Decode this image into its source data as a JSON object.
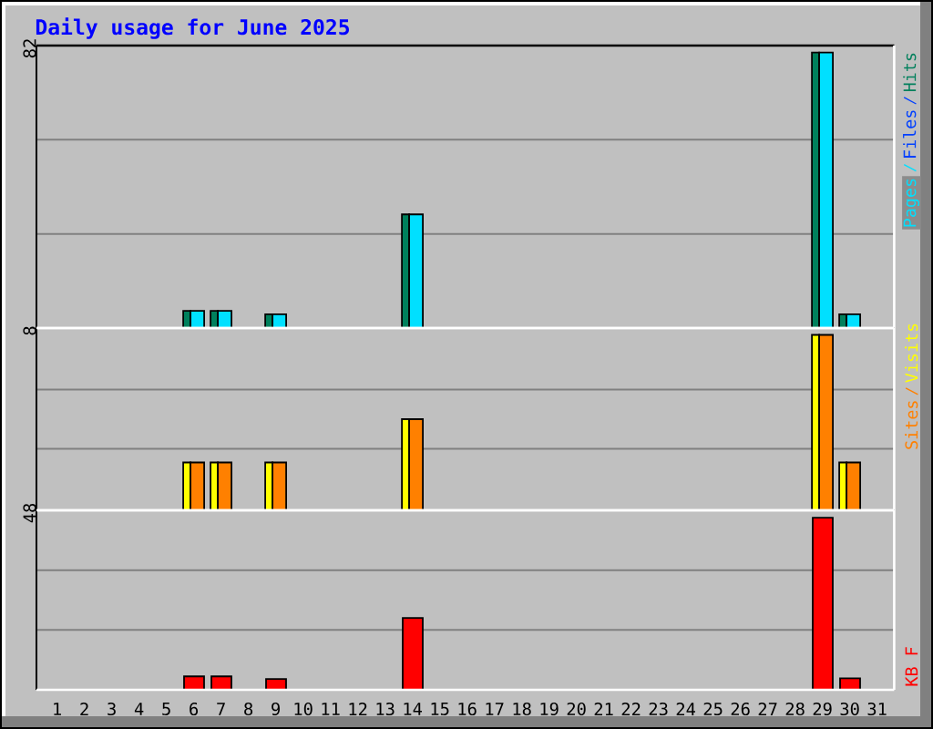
{
  "chart_data": [
    {
      "type": "bar",
      "title": "Daily usage for June 2025",
      "categories": [
        "1",
        "2",
        "3",
        "4",
        "5",
        "6",
        "7",
        "8",
        "9",
        "10",
        "11",
        "12",
        "13",
        "14",
        "15",
        "16",
        "17",
        "18",
        "19",
        "20",
        "21",
        "22",
        "23",
        "24",
        "25",
        "26",
        "27",
        "28",
        "29",
        "30",
        "31"
      ],
      "ylim": [
        0,
        82
      ],
      "yticks": [
        {
          "value": 27.3,
          "label": null
        },
        {
          "value": 54.7,
          "label": null
        },
        82
      ],
      "grid": "y",
      "tick_labels": "y",
      "series": [
        {
          "name": "Hits",
          "color": "#00805c",
          "values": [
            0,
            0,
            0,
            0,
            0,
            5,
            5,
            0,
            4,
            0,
            0,
            0,
            0,
            33,
            0,
            0,
            0,
            0,
            0,
            0,
            0,
            0,
            0,
            0,
            0,
            0,
            0,
            0,
            80,
            4,
            0
          ]
        },
        {
          "name": "Files",
          "color": "#0040ff",
          "values": [
            null,
            null,
            null,
            null,
            null,
            null,
            null,
            null,
            null,
            null,
            null,
            null,
            null,
            null,
            null,
            null,
            null,
            null,
            null,
            null,
            null,
            null,
            null,
            null,
            null,
            null,
            null,
            null,
            null,
            null,
            null
          ]
        },
        {
          "name": "Pages",
          "color": "#00e0ff",
          "values": [
            0,
            0,
            0,
            0,
            0,
            5,
            5,
            0,
            4,
            0,
            0,
            0,
            0,
            33,
            0,
            0,
            0,
            0,
            0,
            0,
            0,
            0,
            0,
            0,
            0,
            0,
            0,
            0,
            80,
            4,
            0
          ]
        }
      ]
    },
    {
      "type": "bar",
      "categories": [
        "1",
        "2",
        "3",
        "4",
        "5",
        "6",
        "7",
        "8",
        "9",
        "10",
        "11",
        "12",
        "13",
        "14",
        "15",
        "16",
        "17",
        "18",
        "19",
        "20",
        "21",
        "22",
        "23",
        "24",
        "25",
        "26",
        "27",
        "28",
        "29",
        "30",
        "31"
      ],
      "ylim": [
        0,
        8
      ],
      "yticks": [
        {
          "value": 2.7,
          "label": null
        },
        {
          "value": 5.3,
          "label": null
        },
        8
      ],
      "grid": "y",
      "tick_labels": "y",
      "series": [
        {
          "name": "Visits",
          "color": "#ffff00",
          "values": [
            0,
            0,
            0,
            0,
            0,
            2.1,
            2.1,
            0,
            2.1,
            0,
            0,
            0,
            0,
            4,
            0,
            0,
            0,
            0,
            0,
            0,
            0,
            0,
            0,
            0,
            0,
            0,
            0,
            0,
            7.7,
            2.1,
            0
          ]
        },
        {
          "name": "Sites",
          "color": "#ff8000",
          "values": [
            0,
            0,
            0,
            0,
            0,
            2.1,
            2.1,
            0,
            2.1,
            0,
            0,
            0,
            0,
            4,
            0,
            0,
            0,
            0,
            0,
            0,
            0,
            0,
            0,
            0,
            0,
            0,
            0,
            0,
            7.7,
            2.1,
            0
          ]
        }
      ]
    },
    {
      "type": "bar",
      "categories": [
        "1",
        "2",
        "3",
        "4",
        "5",
        "6",
        "7",
        "8",
        "9",
        "10",
        "11",
        "12",
        "13",
        "14",
        "15",
        "16",
        "17",
        "18",
        "19",
        "20",
        "21",
        "22",
        "23",
        "24",
        "25",
        "26",
        "27",
        "28",
        "29",
        "30",
        "31"
      ],
      "ylim": [
        0,
        48
      ],
      "yticks": [
        {
          "value": 16,
          "label": null
        },
        {
          "value": 32,
          "label": null
        },
        48
      ],
      "grid": "y",
      "series": [
        {
          "name": "KB F",
          "color": "#ff0000",
          "values": [
            0,
            0,
            0,
            0,
            0,
            3.6,
            3.6,
            0,
            2.9,
            0,
            0,
            0,
            0,
            19.2,
            0,
            0,
            0,
            0,
            0,
            0,
            0,
            0,
            0,
            0,
            0,
            0,
            0,
            0,
            46,
            3.1,
            0
          ]
        }
      ]
    }
  ]
}
